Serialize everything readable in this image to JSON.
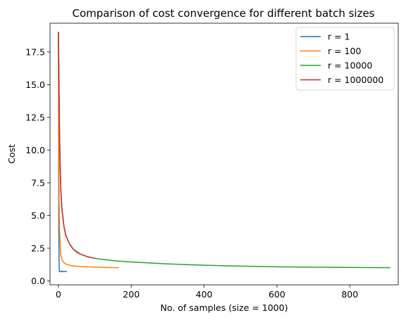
{
  "chart_data": {
    "type": "line",
    "title": "Comparison of cost convergence for different batch sizes",
    "xlabel": "No. of samples (size = 1000)",
    "ylabel": "Cost",
    "xlim": [
      -23,
      933
    ],
    "ylim": [
      -0.3,
      19.7
    ],
    "xticks": [
      0,
      200,
      400,
      600,
      800
    ],
    "xtick_labels": [
      "0",
      "200",
      "400",
      "600",
      "800"
    ],
    "yticks": [
      0.0,
      2.5,
      5.0,
      7.5,
      10.0,
      12.5,
      15.0,
      17.5
    ],
    "ytick_labels": [
      "0.0",
      "2.5",
      "5.0",
      "7.5",
      "10.0",
      "12.5",
      "15.0",
      "17.5"
    ],
    "grid": false,
    "legend_position": "top-right",
    "series": [
      {
        "name": "r = 1",
        "color": "#1f77b4",
        "x": [
          0,
          1,
          2,
          3,
          4,
          5,
          8,
          10,
          14,
          18,
          22
        ],
        "y": [
          19.0,
          4.0,
          0.9,
          0.72,
          0.75,
          0.7,
          0.74,
          0.71,
          0.73,
          0.72,
          0.72
        ]
      },
      {
        "name": "r = 100",
        "color": "#ff7f0e",
        "x": [
          0,
          1,
          2,
          3,
          5,
          7,
          10,
          15,
          20,
          30,
          40,
          60,
          80,
          100,
          120,
          140,
          165
        ],
        "y": [
          19.0,
          11.0,
          6.0,
          4.0,
          2.6,
          1.9,
          1.6,
          1.4,
          1.3,
          1.2,
          1.15,
          1.1,
          1.07,
          1.05,
          1.03,
          1.02,
          1.01
        ]
      },
      {
        "name": "r = 10000",
        "color": "#2ca02c",
        "x": [
          0,
          1,
          2,
          3,
          5,
          7,
          10,
          15,
          20,
          30,
          40,
          60,
          80,
          100,
          150,
          200,
          300,
          400,
          500,
          600,
          700,
          800,
          910
        ],
        "y": [
          19.0,
          16.5,
          14.0,
          11.5,
          8.5,
          6.8,
          5.4,
          4.2,
          3.5,
          2.85,
          2.45,
          2.05,
          1.85,
          1.72,
          1.55,
          1.45,
          1.3,
          1.2,
          1.13,
          1.08,
          1.05,
          1.03,
          1.01
        ]
      },
      {
        "name": "r = 1000000",
        "color": "#d62728",
        "x": [
          0,
          1,
          2,
          3,
          5,
          7,
          10,
          15,
          20,
          30,
          40,
          50,
          60,
          70,
          80,
          90,
          100
        ],
        "y": [
          19.0,
          16.5,
          14.0,
          11.5,
          8.5,
          6.8,
          5.4,
          4.2,
          3.5,
          2.85,
          2.45,
          2.2,
          2.05,
          1.95,
          1.85,
          1.78,
          1.72
        ]
      }
    ]
  }
}
